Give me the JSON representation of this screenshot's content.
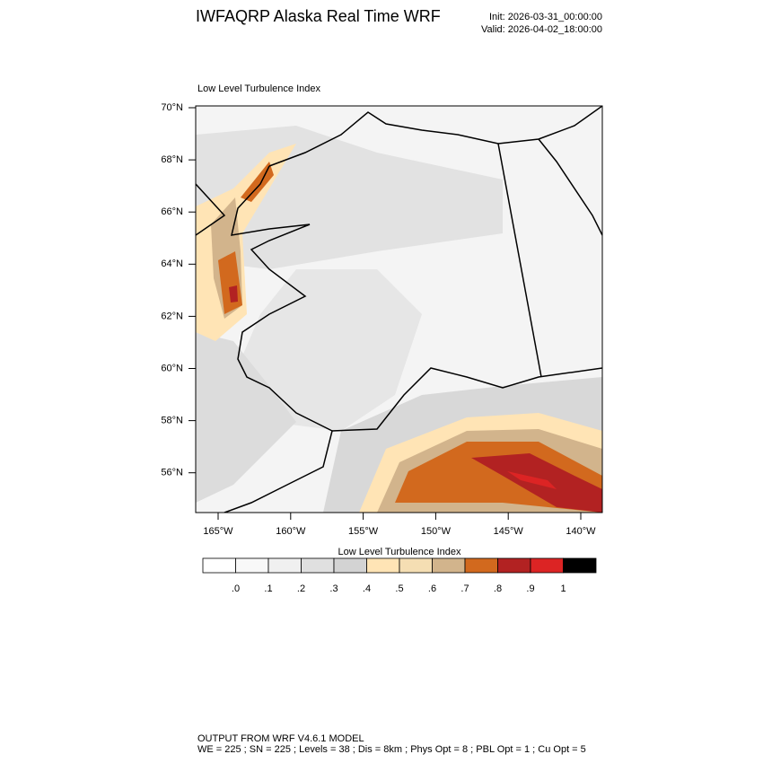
{
  "header": {
    "title": "IWFAQRP Alaska Real Time WRF",
    "init": "Init: 2026-03-31_00:00:00",
    "valid": "Valid: 2026-04-02_18:00:00"
  },
  "map": {
    "title": "Low Level Turbulence Index",
    "lat_labels": [
      "70°N",
      "68°N",
      "66°N",
      "64°N",
      "62°N",
      "60°N",
      "58°N",
      "56°N"
    ],
    "lon_labels": [
      "165°W",
      "160°W",
      "155°W",
      "150°W",
      "145°W",
      "140°W"
    ]
  },
  "colorbar": {
    "title": "Low Level Turbulence Index",
    "colors": [
      "#ffffff",
      "#f8f8f8",
      "#f0f0f0",
      "#e0e0e0",
      "#d3d3d3",
      "#ffe4b5",
      "#f5deb3",
      "#d2b48c",
      "#d2691e",
      "#b22222",
      "#dc2424",
      "#000000"
    ],
    "labels": [
      ".0",
      ".1",
      ".2",
      ".3",
      ".4",
      ".5",
      ".6",
      ".7",
      ".8",
      ".9",
      "1"
    ]
  },
  "footer": {
    "line1": "OUTPUT FROM WRF V4.6.1 MODEL",
    "line2": "WE = 225 ; SN = 225 ; Levels = 38 ; Dis = 8km ; Phys Opt = 8 ; PBL Opt = 1 ; Cu Opt = 5"
  }
}
